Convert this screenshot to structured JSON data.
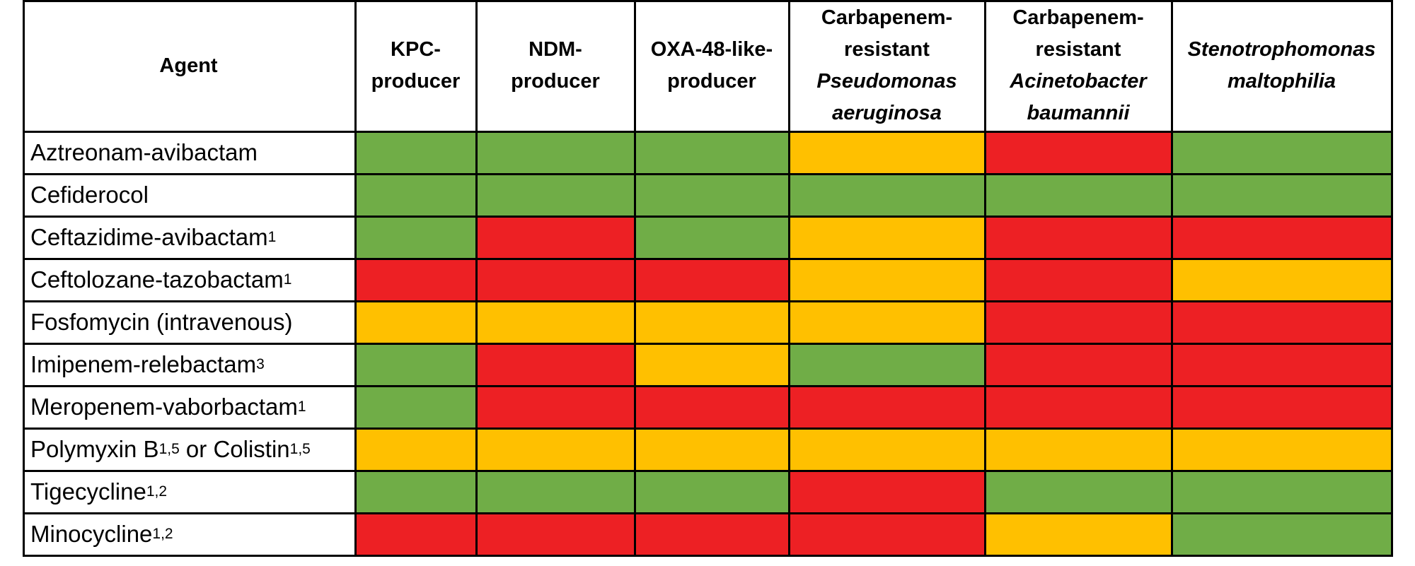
{
  "colors": {
    "green": "#70ad47",
    "red": "#ed2024",
    "yellow": "#ffc000"
  },
  "table": {
    "agent_header": "Agent",
    "columns": [
      {
        "lines": [
          {
            "text": "KPC-",
            "italic": false
          },
          {
            "text": "producer",
            "italic": false
          }
        ]
      },
      {
        "lines": [
          {
            "text": "NDM-",
            "italic": false
          },
          {
            "text": "producer",
            "italic": false
          }
        ]
      },
      {
        "lines": [
          {
            "text": "OXA-48-like-",
            "italic": false
          },
          {
            "text": "producer",
            "italic": false
          }
        ]
      },
      {
        "lines": [
          {
            "text": "Carbapenem-",
            "italic": false
          },
          {
            "text": "resistant",
            "italic": false
          },
          {
            "text": "Pseudomonas",
            "italic": true
          },
          {
            "text": "aeruginosa",
            "italic": true
          }
        ]
      },
      {
        "lines": [
          {
            "text": "Carbapenem-",
            "italic": false
          },
          {
            "text": "resistant",
            "italic": false
          },
          {
            "text": "Acinetobacter",
            "italic": true
          },
          {
            "text": "baumannii",
            "italic": true
          }
        ]
      },
      {
        "lines": [
          {
            "text": "Stenotrophomonas",
            "italic": true
          },
          {
            "text": "maltophilia",
            "italic": true
          }
        ]
      }
    ],
    "rows": [
      {
        "agent": [
          {
            "t": "Aztreonam-avibactam"
          }
        ],
        "cells": [
          "green",
          "green",
          "green",
          "yellow",
          "red",
          "green"
        ]
      },
      {
        "agent": [
          {
            "t": "Cefiderocol"
          }
        ],
        "cells": [
          "green",
          "green",
          "green",
          "green",
          "green",
          "green"
        ]
      },
      {
        "agent": [
          {
            "t": "Ceftazidime-avibactam"
          },
          {
            "sup": "1"
          }
        ],
        "cells": [
          "green",
          "red",
          "green",
          "yellow",
          "red",
          "red"
        ]
      },
      {
        "agent": [
          {
            "t": "Ceftolozane-tazobactam"
          },
          {
            "sup": "1"
          }
        ],
        "cells": [
          "red",
          "red",
          "red",
          "yellow",
          "red",
          "yellow"
        ]
      },
      {
        "agent": [
          {
            "t": "Fosfomycin (intravenous)"
          }
        ],
        "cells": [
          "yellow",
          "yellow",
          "yellow",
          "yellow",
          "red",
          "red"
        ]
      },
      {
        "agent": [
          {
            "t": "Imipenem-relebactam"
          },
          {
            "sup": "3"
          }
        ],
        "cells": [
          "green",
          "red",
          "yellow",
          "green",
          "red",
          "red"
        ]
      },
      {
        "agent": [
          {
            "t": "Meropenem-vaborbactam"
          },
          {
            "sup": "1"
          }
        ],
        "cells": [
          "green",
          "red",
          "red",
          "red",
          "red",
          "red"
        ]
      },
      {
        "agent": [
          {
            "t": "Polymyxin B"
          },
          {
            "sup": "1,5"
          },
          {
            "t": " or Colistin"
          },
          {
            "sup": "1,5"
          }
        ],
        "cells": [
          "yellow",
          "yellow",
          "yellow",
          "yellow",
          "yellow",
          "yellow"
        ]
      },
      {
        "agent": [
          {
            "t": "Tigecycline"
          },
          {
            "sup": "1,2"
          }
        ],
        "cells": [
          "green",
          "green",
          "green",
          "red",
          "green",
          "green"
        ]
      },
      {
        "agent": [
          {
            "t": "Minocycline"
          },
          {
            "sup": "1,2"
          }
        ],
        "cells": [
          "red",
          "red",
          "red",
          "red",
          "yellow",
          "green"
        ]
      }
    ]
  }
}
